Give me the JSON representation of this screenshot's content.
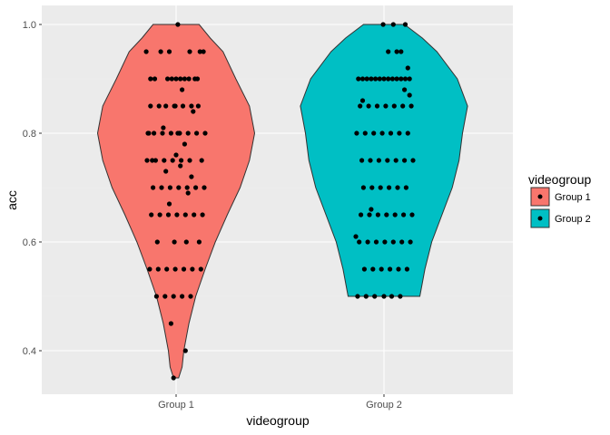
{
  "chart_data": {
    "type": "violin-jitter",
    "xlabel": "videogroup",
    "ylabel": "acc",
    "categories": [
      "Group 1",
      "Group 2"
    ],
    "ylim": [
      0.32,
      1.035
    ],
    "yticks": [
      "0.4",
      "0.6",
      "0.8",
      "1.0"
    ],
    "ytick_values": [
      0.4,
      0.6,
      0.8,
      1.0
    ],
    "grid": true,
    "legend": {
      "title": "videogroup",
      "placement": "right",
      "entries": [
        {
          "label": "Group 1",
          "color": "#F8766D"
        },
        {
          "label": "Group 2",
          "color": "#00BFC4"
        }
      ]
    },
    "violins": [
      {
        "category": "Group 1",
        "color": "#F8766D",
        "min": 0.35,
        "max": 1.0,
        "profile": [
          [
            0.35,
            0.03
          ],
          [
            0.37,
            0.07
          ],
          [
            0.4,
            0.09
          ],
          [
            0.45,
            0.15
          ],
          [
            0.5,
            0.23
          ],
          [
            0.55,
            0.34
          ],
          [
            0.6,
            0.46
          ],
          [
            0.65,
            0.6
          ],
          [
            0.7,
            0.75
          ],
          [
            0.75,
            0.86
          ],
          [
            0.8,
            0.92
          ],
          [
            0.85,
            0.86
          ],
          [
            0.9,
            0.7
          ],
          [
            0.95,
            0.55
          ],
          [
            0.975,
            0.4
          ],
          [
            1.0,
            0.27
          ]
        ]
      },
      {
        "category": "Group 2",
        "color": "#00BFC4",
        "min": 0.5,
        "max": 1.0,
        "profile": [
          [
            0.5,
            0.42
          ],
          [
            0.55,
            0.48
          ],
          [
            0.6,
            0.56
          ],
          [
            0.65,
            0.68
          ],
          [
            0.7,
            0.8
          ],
          [
            0.75,
            0.88
          ],
          [
            0.8,
            0.92
          ],
          [
            0.85,
            0.98
          ],
          [
            0.9,
            0.86
          ],
          [
            0.95,
            0.62
          ],
          [
            0.975,
            0.45
          ],
          [
            1.0,
            0.24
          ]
        ]
      }
    ],
    "points": [
      {
        "category": "Group 1",
        "x_offset": [
          -0.35,
          -0.3,
          -0.25,
          -0.3,
          -0.32,
          -0.28,
          -0.34,
          -0.1,
          -0.05,
          0.0,
          0.05,
          0.1,
          0.15,
          0.22,
          0.28,
          0.32,
          -0.2,
          -0.12,
          -0.02,
          0.08,
          0.18,
          0.26,
          -0.33,
          -0.26,
          -0.16,
          -0.06,
          0.04,
          0.14,
          0.24,
          0.34,
          -0.24,
          -0.14,
          -0.04,
          0.06,
          0.16,
          0.3,
          -0.27,
          -0.17,
          -0.07,
          0.03,
          0.13,
          0.23,
          0.33,
          -0.29,
          -0.19,
          -0.09,
          0.01,
          0.11,
          0.21,
          0.31,
          -0.22,
          -0.02,
          0.12,
          0.27,
          -0.31,
          -0.21,
          -0.11,
          -0.01,
          0.09,
          0.19,
          0.29,
          -0.23,
          -0.13,
          -0.03,
          0.07,
          0.17,
          -0.18,
          -0.08,
          0.02,
          0.16,
          0.25,
          -0.15,
          0.0,
          0.1,
          0.2,
          -0.08,
          0.07,
          0.18,
          -0.12,
          0.05,
          0.14,
          -0.06,
          0.11,
          -0.03,
          0.04,
          -0.01,
          0.02
        ],
        "y": [
          0.95,
          0.9,
          0.9,
          0.85,
          0.8,
          0.75,
          0.75,
          0.9,
          0.9,
          0.9,
          0.9,
          0.9,
          0.9,
          0.9,
          0.95,
          0.95,
          0.85,
          0.85,
          0.85,
          0.85,
          0.85,
          0.85,
          0.8,
          0.8,
          0.8,
          0.8,
          0.8,
          0.8,
          0.8,
          0.8,
          0.75,
          0.75,
          0.75,
          0.75,
          0.75,
          0.75,
          0.7,
          0.7,
          0.7,
          0.7,
          0.7,
          0.7,
          0.7,
          0.65,
          0.65,
          0.65,
          0.65,
          0.65,
          0.65,
          0.65,
          0.6,
          0.6,
          0.6,
          0.6,
          0.55,
          0.55,
          0.55,
          0.55,
          0.55,
          0.55,
          0.55,
          0.5,
          0.5,
          0.5,
          0.5,
          0.5,
          0.95,
          0.95,
          1.0,
          0.95,
          0.9,
          0.81,
          0.76,
          0.78,
          0.84,
          0.67,
          0.88,
          0.72,
          0.73,
          0.74,
          0.69,
          0.45,
          0.4,
          0.35,
          0.8,
          0.85,
          0.8
        ]
      },
      {
        "category": "Group 2",
        "x_offset": [
          -0.3,
          -0.25,
          -0.2,
          -0.15,
          -0.1,
          -0.05,
          0.0,
          0.05,
          0.1,
          0.15,
          0.2,
          0.25,
          0.3,
          -0.28,
          -0.18,
          -0.08,
          0.02,
          0.12,
          0.22,
          0.32,
          -0.32,
          -0.22,
          -0.12,
          -0.02,
          0.08,
          0.18,
          0.28,
          -0.26,
          -0.16,
          -0.06,
          0.04,
          0.14,
          0.24,
          0.34,
          -0.24,
          -0.14,
          -0.04,
          0.06,
          0.16,
          0.26,
          -0.27,
          -0.17,
          -0.07,
          0.03,
          0.13,
          0.23,
          0.33,
          -0.29,
          -0.19,
          -0.09,
          0.01,
          0.11,
          0.21,
          0.31,
          -0.23,
          -0.13,
          -0.03,
          0.07,
          0.17,
          0.27,
          -0.21,
          -0.11,
          0.09,
          0.19,
          -0.31,
          -0.01,
          0.11,
          0.25,
          0.05,
          0.15,
          0.2,
          0.24,
          0.28,
          0.3,
          -0.33,
          -0.25,
          -0.15,
          0.0
        ],
        "y": [
          0.9,
          0.9,
          0.9,
          0.9,
          0.9,
          0.9,
          0.9,
          0.9,
          0.9,
          0.9,
          0.9,
          0.9,
          0.9,
          0.85,
          0.85,
          0.85,
          0.85,
          0.85,
          0.85,
          0.85,
          0.8,
          0.8,
          0.8,
          0.8,
          0.8,
          0.8,
          0.8,
          0.75,
          0.75,
          0.75,
          0.75,
          0.75,
          0.75,
          0.75,
          0.7,
          0.7,
          0.7,
          0.7,
          0.7,
          0.7,
          0.65,
          0.65,
          0.65,
          0.65,
          0.65,
          0.65,
          0.65,
          0.6,
          0.6,
          0.6,
          0.6,
          0.6,
          0.6,
          0.6,
          0.55,
          0.55,
          0.55,
          0.55,
          0.55,
          0.55,
          0.5,
          0.5,
          0.5,
          0.5,
          0.5,
          1.0,
          1.0,
          1.0,
          0.95,
          0.95,
          0.95,
          0.88,
          0.92,
          0.87,
          0.61,
          0.86,
          0.66,
          0.5
        ]
      }
    ]
  }
}
